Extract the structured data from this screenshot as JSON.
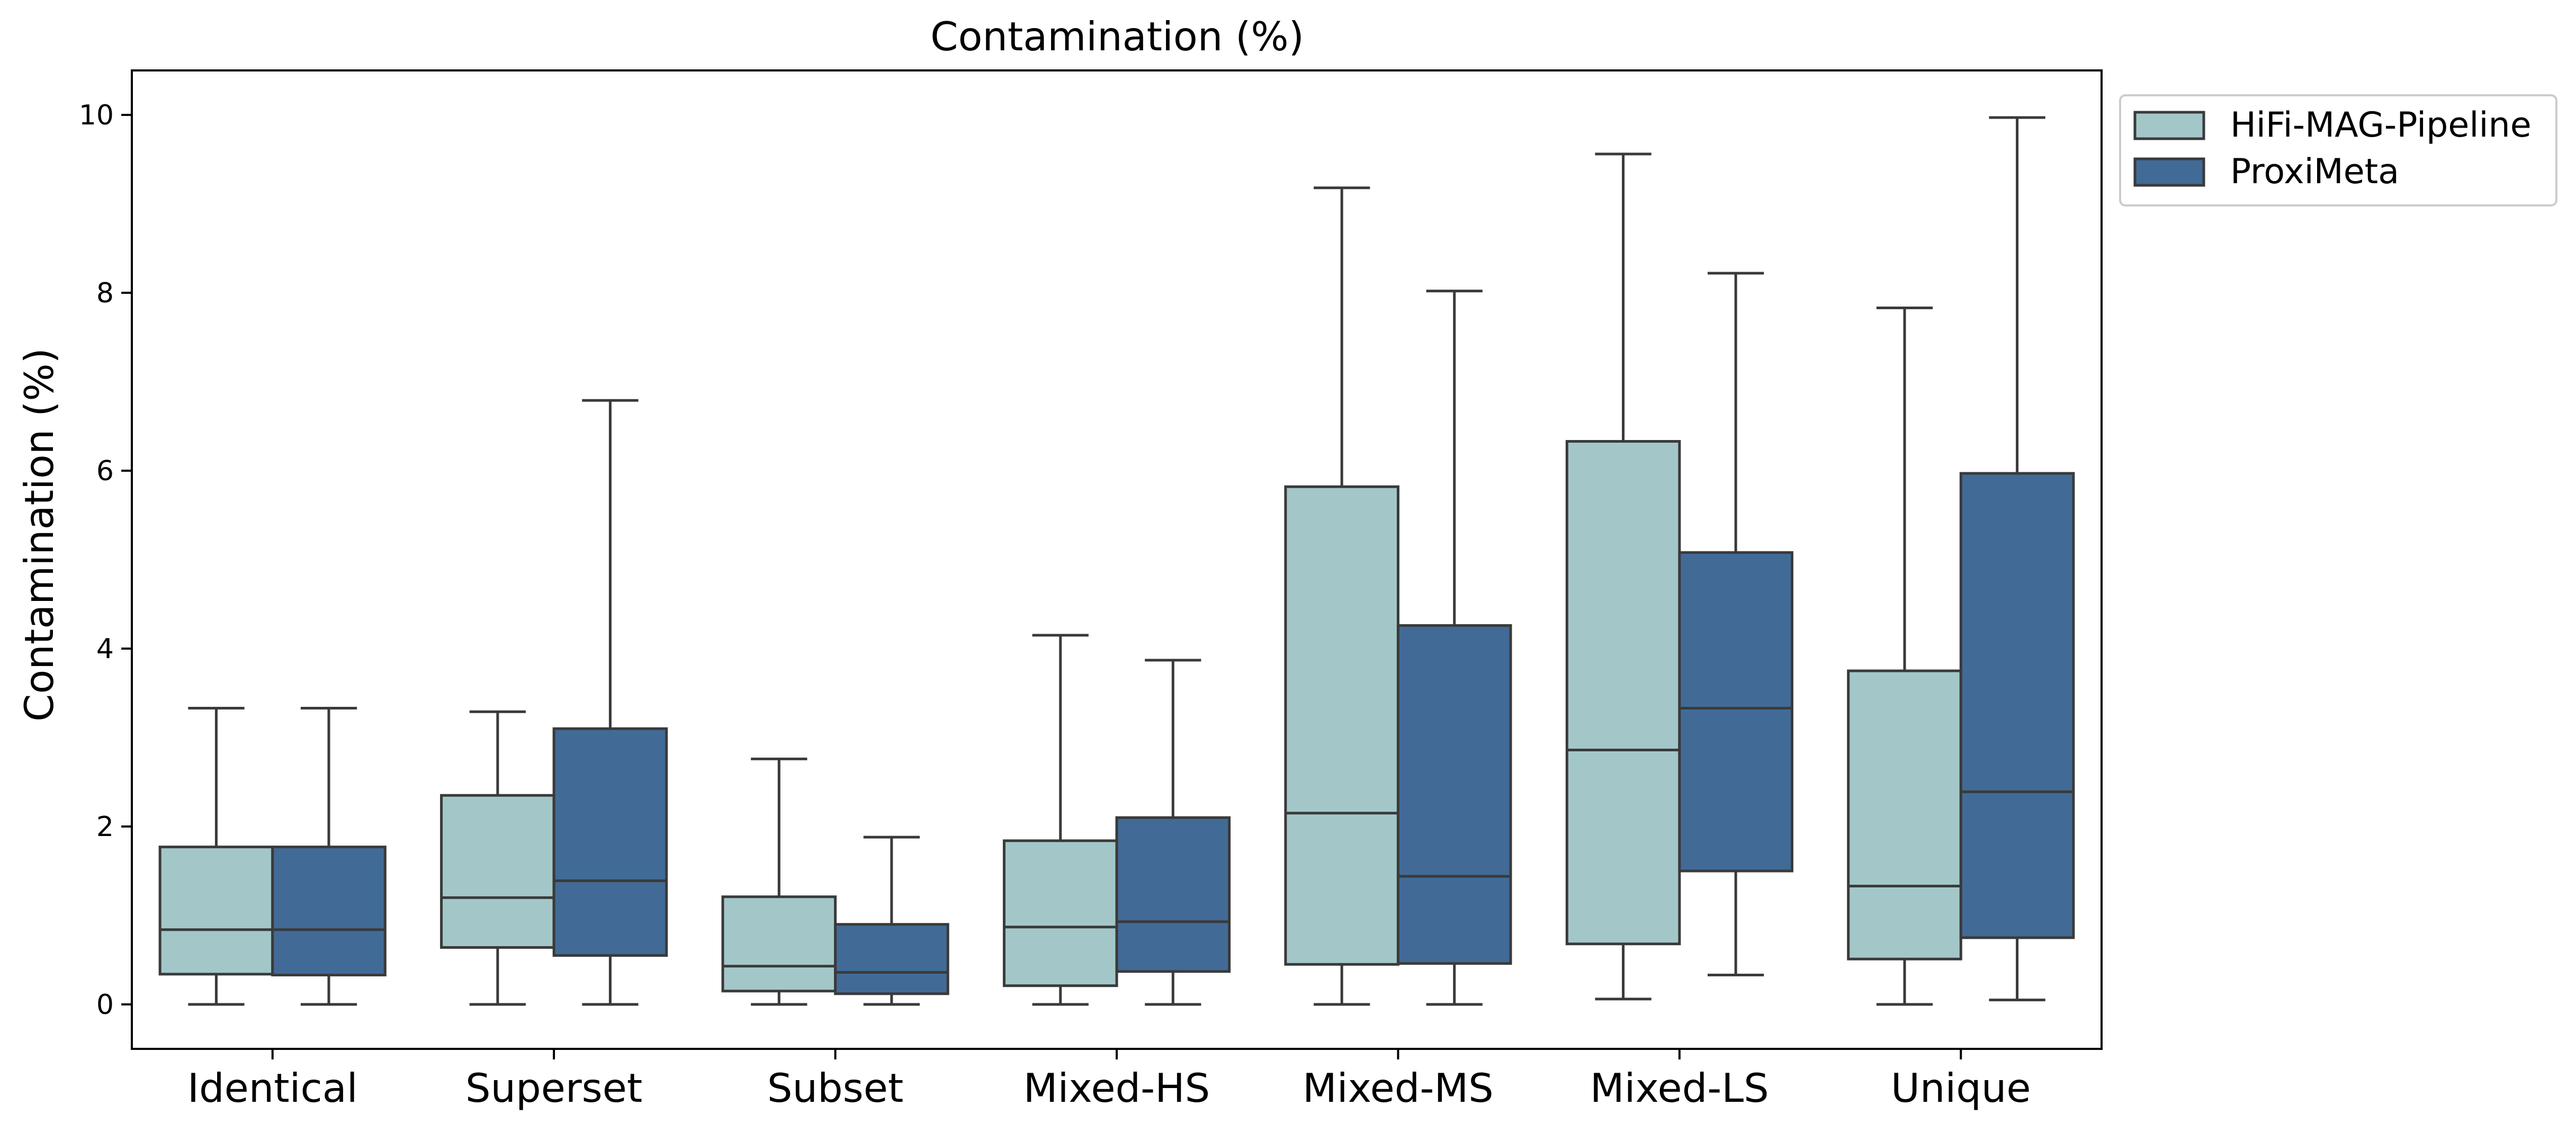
{
  "chart_data": {
    "type": "boxplot",
    "title": "Contamination (%)",
    "xlabel": "",
    "ylabel": "Contamination (%)",
    "ylim": [
      -0.5,
      10.5
    ],
    "yticks": [
      0,
      2,
      4,
      6,
      8,
      10
    ],
    "categories": [
      "Identical",
      "Superset",
      "Subset",
      "Mixed-HS",
      "Mixed-MS",
      "Mixed-LS",
      "Unique"
    ],
    "legend_position": "outside-top-right",
    "grid": false,
    "series": [
      {
        "name": "HiFi-MAG-Pipeline",
        "color": "#a3c7c8",
        "boxes": [
          {
            "whisker_low": 0.0,
            "q1": 0.34,
            "median": 0.84,
            "q3": 1.77,
            "whisker_high": 3.33
          },
          {
            "whisker_low": 0.0,
            "q1": 0.64,
            "median": 1.2,
            "q3": 2.35,
            "whisker_high": 3.29
          },
          {
            "whisker_low": 0.0,
            "q1": 0.15,
            "median": 0.43,
            "q3": 1.21,
            "whisker_high": 2.76
          },
          {
            "whisker_low": 0.0,
            "q1": 0.21,
            "median": 0.87,
            "q3": 1.84,
            "whisker_high": 4.15
          },
          {
            "whisker_low": 0.0,
            "q1": 0.45,
            "median": 2.15,
            "q3": 5.82,
            "whisker_high": 9.18
          },
          {
            "whisker_low": 0.06,
            "q1": 0.68,
            "median": 2.86,
            "q3": 6.33,
            "whisker_high": 9.56
          },
          {
            "whisker_low": 0.0,
            "q1": 0.51,
            "median": 1.33,
            "q3": 3.75,
            "whisker_high": 7.83
          }
        ]
      },
      {
        "name": "ProxiMeta",
        "color": "#416b96",
        "boxes": [
          {
            "whisker_low": 0.0,
            "q1": 0.33,
            "median": 0.84,
            "q3": 1.77,
            "whisker_high": 3.33
          },
          {
            "whisker_low": 0.0,
            "q1": 0.55,
            "median": 1.39,
            "q3": 3.1,
            "whisker_high": 6.79
          },
          {
            "whisker_low": 0.0,
            "q1": 0.12,
            "median": 0.36,
            "q3": 0.9,
            "whisker_high": 1.88
          },
          {
            "whisker_low": 0.0,
            "q1": 0.37,
            "median": 0.93,
            "q3": 2.1,
            "whisker_high": 3.87
          },
          {
            "whisker_low": 0.0,
            "q1": 0.46,
            "median": 1.44,
            "q3": 4.26,
            "whisker_high": 8.02
          },
          {
            "whisker_low": 0.33,
            "q1": 1.5,
            "median": 3.33,
            "q3": 5.08,
            "whisker_high": 8.22
          },
          {
            "whisker_low": 0.05,
            "q1": 0.75,
            "median": 2.39,
            "q3": 5.97,
            "whisker_high": 9.97
          }
        ]
      }
    ]
  }
}
